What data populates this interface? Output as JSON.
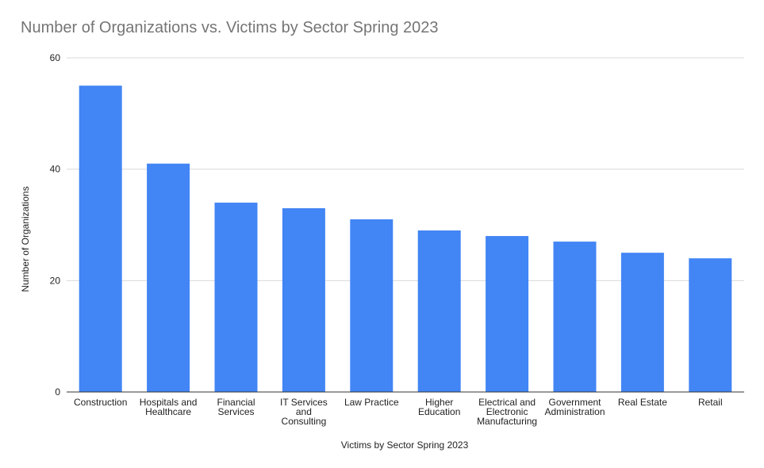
{
  "chart_data": {
    "type": "bar",
    "title": "Number of Organizations vs. Victims by Sector Spring 2023",
    "xlabel": "Victims by Sector Spring 2023",
    "ylabel": "Number of Organizations",
    "categories": [
      "Construction",
      "Hospitals and Healthcare",
      "Financial Services",
      "IT Services and Consulting",
      "Law Practice",
      "Higher Education",
      "Electrical and Electronic Manufacturing",
      "Government Administration",
      "Real Estate",
      "Retail"
    ],
    "category_lines": [
      [
        "Construction"
      ],
      [
        "Hospitals and",
        "Healthcare"
      ],
      [
        "Financial",
        "Services"
      ],
      [
        "IT Services",
        "and",
        "Consulting"
      ],
      [
        "Law Practice"
      ],
      [
        "Higher",
        "Education"
      ],
      [
        "Electrical and",
        "Electronic",
        "Manufacturing"
      ],
      [
        "Government",
        "Administration"
      ],
      [
        "Real Estate"
      ],
      [
        "Retail"
      ]
    ],
    "values": [
      55,
      41,
      34,
      33,
      31,
      29,
      28,
      27,
      25,
      24
    ],
    "ylim": [
      0,
      60
    ],
    "yticks": [
      0,
      20,
      40,
      60
    ],
    "grid": true,
    "bar_color": "#4285f4",
    "grid_color": "#d9d9d9",
    "axis_color": "#333333"
  }
}
